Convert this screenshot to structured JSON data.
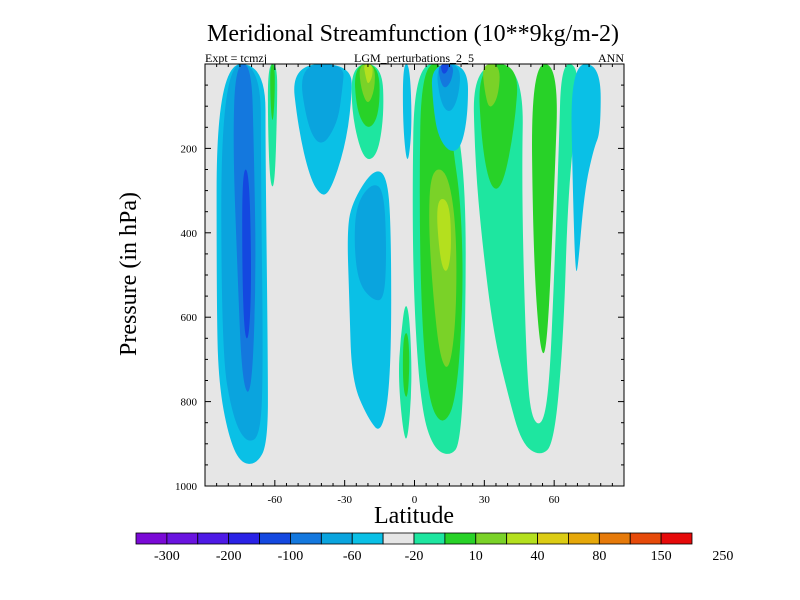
{
  "chart_data": {
    "type": "contour",
    "title": "Meridional Streamfunction (10**9kg/m-2)",
    "subtitle_left": "Expt = tcmzj",
    "subtitle_center": "LGM_perturbations_2_5",
    "subtitle_right": "ANN",
    "xlabel": "Latitude",
    "ylabel": "Pressure (in hPa)",
    "xlim": [
      -90,
      90
    ],
    "ylim": [
      1000,
      0
    ],
    "x_ticks": [
      {
        "value": -60,
        "label": "-60"
      },
      {
        "value": -30,
        "label": "-30"
      },
      {
        "value": 0,
        "label": "0"
      },
      {
        "value": 30,
        "label": "30"
      },
      {
        "value": 60,
        "label": "60"
      }
    ],
    "y_ticks": [
      {
        "value": 200,
        "label": "200"
      },
      {
        "value": 400,
        "label": "400"
      },
      {
        "value": 600,
        "label": "600"
      },
      {
        "value": 800,
        "label": "800"
      },
      {
        "value": 1000,
        "label": "1000"
      }
    ],
    "colorbar": {
      "colors": [
        "#7a0ad6",
        "#6a14e0",
        "#4e1ae6",
        "#2a22e6",
        "#1448e0",
        "#1478de",
        "#0aa4de",
        "#0ac0e6",
        "#e6e6e6",
        "#1ee6a0",
        "#28d228",
        "#7ad228",
        "#b4e01e",
        "#dccc14",
        "#e6a80a",
        "#e67a0a",
        "#e64a0a",
        "#e60a0a"
      ],
      "labels": [
        "-300",
        "-200",
        "-100",
        "-60",
        "-20",
        "10",
        "40",
        "80",
        "150",
        "250"
      ]
    },
    "regions": [
      {
        "name": "sh-negative-cell-outer",
        "level": "-20",
        "color": "#0ac0e6",
        "points": [
          [
            -85,
            0
          ],
          [
            -64,
            0
          ],
          [
            -64,
            220
          ],
          [
            -63,
            700
          ],
          [
            -63,
            900
          ],
          [
            -68,
            950
          ],
          [
            -75,
            945
          ],
          [
            -80,
            880
          ],
          [
            -84,
            760
          ],
          [
            -85,
            600
          ]
        ]
      },
      {
        "name": "sh-negative-cell-mid",
        "level": "-60",
        "color": "#0aa4de",
        "points": [
          [
            -83,
            0
          ],
          [
            -66,
            0
          ],
          [
            -66,
            250
          ],
          [
            -65,
            700
          ],
          [
            -66,
            880
          ],
          [
            -72,
            900
          ],
          [
            -78,
            840
          ],
          [
            -83,
            680
          ]
        ]
      },
      {
        "name": "sh-negative-cell-core",
        "level": "-100",
        "color": "#1478de",
        "points": [
          [
            -77,
            0
          ],
          [
            -70,
            0
          ],
          [
            -69,
            200
          ],
          [
            -68,
            500
          ],
          [
            -70,
            790
          ],
          [
            -74,
            760
          ],
          [
            -76,
            500
          ],
          [
            -78,
            200
          ]
        ]
      },
      {
        "name": "sh-negative-cell-max",
        "level": "-300",
        "color": "#1448e0",
        "points": [
          [
            -74,
            250
          ],
          [
            -71,
            250
          ],
          [
            -70,
            500
          ],
          [
            -71,
            650
          ],
          [
            -73,
            650
          ],
          [
            -74,
            500
          ]
        ]
      },
      {
        "name": "sh-positive-sliver",
        "level": "10",
        "color": "#1ee6a0",
        "points": [
          [
            -63,
            0
          ],
          [
            -59,
            0
          ],
          [
            -59,
            100
          ],
          [
            -60,
            290
          ],
          [
            -62,
            290
          ],
          [
            -63,
            150
          ]
        ]
      },
      {
        "name": "sh-positive-sliver-inner",
        "level": "40",
        "color": "#28d228",
        "points": [
          [
            -62,
            0
          ],
          [
            -60,
            0
          ],
          [
            -60,
            80
          ],
          [
            -61,
            150
          ],
          [
            -62,
            80
          ]
        ]
      },
      {
        "name": "midlat-negative-cell",
        "level": "-20",
        "color": "#0ac0e6",
        "points": [
          [
            -53,
            0
          ],
          [
            -27,
            0
          ],
          [
            -27,
            90
          ],
          [
            -30,
            200
          ],
          [
            -36,
            300
          ],
          [
            -40,
            315
          ],
          [
            -45,
            270
          ],
          [
            -50,
            150
          ]
        ]
      },
      {
        "name": "midlat-negative-core",
        "level": "-60",
        "color": "#0aa4de",
        "points": [
          [
            -50,
            0
          ],
          [
            -30,
            0
          ],
          [
            -31,
            60
          ],
          [
            -33,
            140
          ],
          [
            -40,
            200
          ],
          [
            -46,
            150
          ]
        ]
      },
      {
        "name": "sh-subtropic-positive",
        "level": "10",
        "color": "#1ee6a0",
        "points": [
          [
            -27,
            0
          ],
          [
            -14,
            0
          ],
          [
            -13,
            120
          ],
          [
            -16,
            220
          ],
          [
            -22,
            230
          ],
          [
            -27,
            120
          ]
        ]
      },
      {
        "name": "sh-subtropic-positive-2",
        "level": "40",
        "color": "#28d228",
        "points": [
          [
            -26,
            0
          ],
          [
            -15,
            0
          ],
          [
            -15,
            120
          ],
          [
            -20,
            160
          ],
          [
            -25,
            110
          ]
        ]
      },
      {
        "name": "sh-subtropic-positive-3",
        "level": "80",
        "color": "#7ad228",
        "points": [
          [
            -24,
            0
          ],
          [
            -17,
            0
          ],
          [
            -17,
            60
          ],
          [
            -20,
            100
          ],
          [
            -23,
            60
          ]
        ]
      },
      {
        "name": "sh-subtropic-positive-4",
        "level": "150",
        "color": "#b4e01e",
        "points": [
          [
            -22,
            0
          ],
          [
            -18,
            0
          ],
          [
            -18,
            30
          ],
          [
            -20,
            50
          ],
          [
            -21,
            30
          ]
        ]
      },
      {
        "name": "sh-lower-negative",
        "level": "-20",
        "color": "#0ac0e6",
        "points": [
          [
            -27,
            330
          ],
          [
            -18,
            250
          ],
          [
            -12,
            260
          ],
          [
            -10,
            380
          ],
          [
            -10,
            740
          ],
          [
            -14,
            880
          ],
          [
            -20,
            840
          ],
          [
            -27,
            750
          ],
          [
            -28,
            560
          ],
          [
            -29,
            400
          ]
        ]
      },
      {
        "name": "sh-lower-negative-core",
        "level": "-60",
        "color": "#0aa4de",
        "points": [
          [
            -25,
            330
          ],
          [
            -18,
            280
          ],
          [
            -13,
            300
          ],
          [
            -12,
            450
          ],
          [
            -13,
            560
          ],
          [
            -18,
            560
          ],
          [
            -24,
            520
          ],
          [
            -26,
            430
          ]
        ]
      },
      {
        "name": "eq-positive-sliver",
        "level": "10",
        "color": "#1ee6a0",
        "points": [
          [
            -6,
            650
          ],
          [
            -4,
            560
          ],
          [
            -2,
            600
          ],
          [
            -1,
            760
          ],
          [
            -3,
            900
          ],
          [
            -5,
            870
          ],
          [
            -7,
            740
          ]
        ]
      },
      {
        "name": "eq-positive-sliver-inner",
        "level": "40",
        "color": "#28d228",
        "points": [
          [
            -5,
            650
          ],
          [
            -3,
            630
          ],
          [
            -2,
            700
          ],
          [
            -3,
            800
          ],
          [
            -5,
            770
          ]
        ]
      },
      {
        "name": "eq-negative-top",
        "level": "-20",
        "color": "#0ac0e6",
        "points": [
          [
            -5,
            0
          ],
          [
            -2,
            0
          ],
          [
            -1,
            150
          ],
          [
            -3,
            250
          ],
          [
            -5,
            150
          ]
        ]
      },
      {
        "name": "nh-hadley-outer",
        "level": "10",
        "color": "#1ee6a0",
        "points": [
          [
            0,
            0
          ],
          [
            15,
            0
          ],
          [
            18,
            120
          ],
          [
            22,
            300
          ],
          [
            22,
            600
          ],
          [
            20,
            900
          ],
          [
            15,
            930
          ],
          [
            8,
            910
          ],
          [
            3,
            820
          ],
          [
            0,
            600
          ],
          [
            -1,
            330
          ]
        ]
      },
      {
        "name": "nh-hadley-40",
        "level": "40",
        "color": "#28d228",
        "points": [
          [
            3,
            0
          ],
          [
            14,
            0
          ],
          [
            16,
            180
          ],
          [
            20,
            330
          ],
          [
            21,
            550
          ],
          [
            18,
            800
          ],
          [
            12,
            860
          ],
          [
            6,
            800
          ],
          [
            3,
            600
          ],
          [
            2,
            300
          ]
        ]
      },
      {
        "name": "nh-hadley-80",
        "level": "80",
        "color": "#7ad228",
        "points": [
          [
            7,
            250
          ],
          [
            14,
            250
          ],
          [
            18,
            380
          ],
          [
            18,
            600
          ],
          [
            15,
            730
          ],
          [
            11,
            700
          ],
          [
            8,
            550
          ],
          [
            6,
            380
          ]
        ]
      },
      {
        "name": "nh-hadley-core",
        "level": "150",
        "color": "#b4e01e",
        "points": [
          [
            9,
            320
          ],
          [
            15,
            320
          ],
          [
            16,
            440
          ],
          [
            14,
            500
          ],
          [
            11,
            470
          ]
        ]
      },
      {
        "name": "nh-top-negative",
        "level": "-20",
        "color": "#0ac0e6",
        "points": [
          [
            7,
            0
          ],
          [
            23,
            0
          ],
          [
            23,
            120
          ],
          [
            20,
            200
          ],
          [
            15,
            210
          ],
          [
            10,
            170
          ],
          [
            8,
            100
          ]
        ]
      },
      {
        "name": "nh-top-negative-2",
        "level": "-60",
        "color": "#0aa4de",
        "points": [
          [
            9,
            0
          ],
          [
            20,
            0
          ],
          [
            19,
            80
          ],
          [
            15,
            120
          ],
          [
            11,
            90
          ]
        ]
      },
      {
        "name": "nh-top-negative-3",
        "level": "-100",
        "color": "#1478de",
        "points": [
          [
            10,
            0
          ],
          [
            17,
            0
          ],
          [
            16,
            40
          ],
          [
            13,
            60
          ],
          [
            11,
            40
          ]
        ]
      },
      {
        "name": "nh-top-negative-4",
        "level": "-300",
        "color": "#1448e0",
        "points": [
          [
            11,
            0
          ],
          [
            15,
            0
          ],
          [
            14,
            20
          ],
          [
            12,
            25
          ]
        ]
      },
      {
        "name": "nh-midlat-positive",
        "level": "10",
        "color": "#1ee6a0",
        "points": [
          [
            25,
            0
          ],
          [
            47,
            0
          ],
          [
            46,
            300
          ],
          [
            48,
            700
          ],
          [
            50,
            840
          ],
          [
            55,
            860
          ],
          [
            58,
            760
          ],
          [
            60,
            500
          ],
          [
            62,
            200
          ],
          [
            63,
            0
          ],
          [
            70,
            0
          ],
          [
            70,
            100
          ],
          [
            66,
            300
          ],
          [
            64,
            650
          ],
          [
            60,
            900
          ],
          [
            54,
            930
          ],
          [
            46,
            900
          ],
          [
            40,
            780
          ],
          [
            34,
            640
          ],
          [
            29,
            420
          ],
          [
            26,
            230
          ]
        ]
      },
      {
        "name": "nh-midlat-40",
        "level": "40",
        "color": "#28d228",
        "points": [
          [
            27,
            0
          ],
          [
            45,
            0
          ],
          [
            43,
            150
          ],
          [
            38,
            290
          ],
          [
            33,
            300
          ],
          [
            29,
            200
          ]
        ]
      },
      {
        "name": "nh-midlat-40-b",
        "level": "40",
        "color": "#28d228",
        "points": [
          [
            50,
            0
          ],
          [
            62,
            0
          ],
          [
            60,
            300
          ],
          [
            57,
            680
          ],
          [
            54,
            690
          ],
          [
            51,
            450
          ]
        ]
      },
      {
        "name": "nh-midlat-80",
        "level": "80",
        "color": "#7ad228",
        "points": [
          [
            29,
            0
          ],
          [
            37,
            0
          ],
          [
            36,
            80
          ],
          [
            32,
            110
          ],
          [
            30,
            60
          ]
        ]
      },
      {
        "name": "nh-polar-negative",
        "level": "-20",
        "color": "#0ac0e6",
        "points": [
          [
            67,
            0
          ],
          [
            80,
            0
          ],
          [
            80,
            160
          ],
          [
            77,
            200
          ],
          [
            73,
            300
          ],
          [
            70,
            500
          ],
          [
            69,
            480
          ],
          [
            68,
            300
          ]
        ]
      }
    ]
  }
}
